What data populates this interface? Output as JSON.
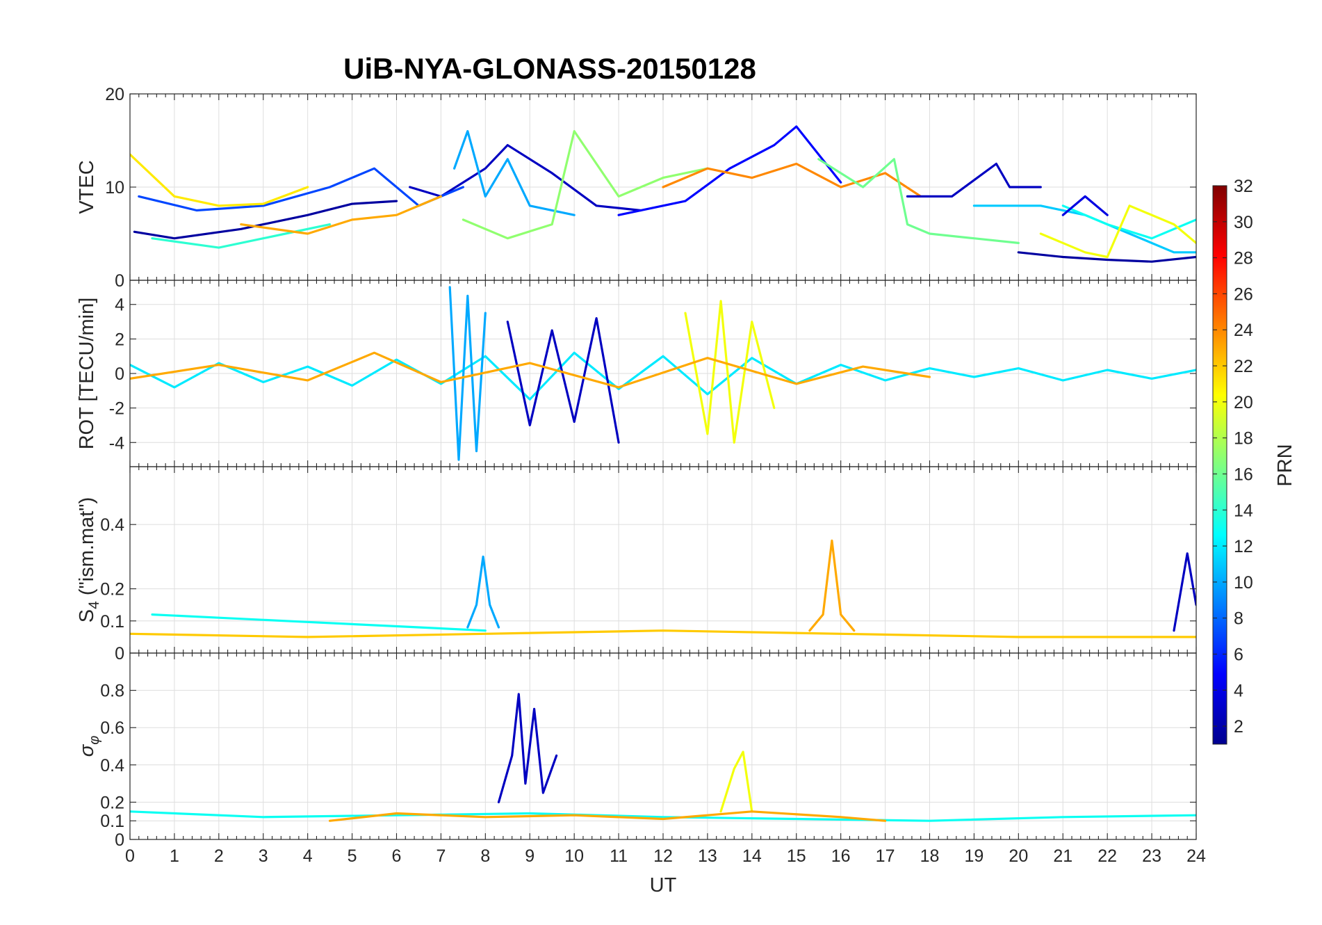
{
  "chart_data": {
    "title": "UiB-NYA-GLONASS-20150128",
    "type": "line",
    "xlabel": "UT",
    "xlim": [
      0,
      24
    ],
    "xticks": [
      "0",
      "1",
      "2",
      "3",
      "4",
      "5",
      "6",
      "7",
      "8",
      "9",
      "10",
      "11",
      "12",
      "13",
      "14",
      "15",
      "16",
      "17",
      "18",
      "19",
      "20",
      "21",
      "22",
      "23",
      "24"
    ],
    "colorbar": {
      "label": "PRN",
      "range": [
        1,
        32
      ],
      "ticks": [
        "2",
        "4",
        "6",
        "8",
        "10",
        "12",
        "14",
        "16",
        "18",
        "20",
        "22",
        "24",
        "26",
        "28",
        "30",
        "32"
      ]
    },
    "panels": [
      {
        "id": "vtec",
        "ylabel": "VTEC",
        "ylim": [
          0,
          20
        ],
        "yticks": [
          {
            "v": 0,
            "t": "0"
          },
          {
            "v": 10,
            "t": "10"
          },
          {
            "v": 20,
            "t": "20"
          }
        ],
        "series": [
          {
            "prn": 2,
            "x": [
              0.1,
              1.0,
              2.5,
              4.0,
              5.0,
              6.0
            ],
            "y": [
              5.2,
              4.5,
              5.5,
              7.0,
              8.2,
              8.5
            ]
          },
          {
            "prn": 3,
            "x": [
              6.3,
              7.0,
              8.0,
              8.5,
              9.0,
              9.5,
              10.5,
              11.5
            ],
            "y": [
              10.0,
              9.0,
              12.0,
              14.5,
              13.0,
              11.5,
              8.0,
              7.5
            ]
          },
          {
            "prn": 7,
            "x": [
              0.2,
              1.5,
              3.0,
              4.5,
              5.5,
              6.5,
              7.5
            ],
            "y": [
              9.0,
              7.5,
              8.0,
              10.0,
              12.0,
              8.0,
              10.0
            ]
          },
          {
            "prn": 10,
            "x": [
              7.3,
              7.6,
              8.0,
              8.5,
              9.0,
              10.0
            ],
            "y": [
              12.0,
              16.0,
              9.0,
              13.0,
              8.0,
              7.0
            ]
          },
          {
            "prn": 5,
            "x": [
              11.0,
              12.5,
              13.5,
              14.5,
              15.0,
              16.0
            ],
            "y": [
              7.0,
              8.5,
              12.0,
              14.5,
              16.5,
              10.5
            ]
          },
          {
            "prn": 21,
            "x": [
              0.0,
              1.0,
              2.0,
              3.0,
              4.0
            ],
            "y": [
              13.5,
              9.0,
              8.0,
              8.2,
              10.0
            ]
          },
          {
            "prn": 14,
            "x": [
              0.5,
              2.0,
              3.5,
              4.5
            ],
            "y": [
              4.5,
              3.5,
              5.0,
              6.0
            ]
          },
          {
            "prn": 23,
            "x": [
              2.5,
              4.0,
              5.0,
              6.0,
              7.0
            ],
            "y": [
              6.0,
              5.0,
              6.5,
              7.0,
              9.0
            ]
          },
          {
            "prn": 17,
            "x": [
              7.5,
              8.5,
              9.5,
              10.0,
              11.0,
              12.0,
              13.0
            ],
            "y": [
              6.5,
              4.5,
              6.0,
              16.0,
              9.0,
              11.0,
              12.0
            ]
          },
          {
            "prn": 24,
            "x": [
              12.0,
              13.0,
              14.0,
              15.0,
              16.0,
              17.0,
              17.8
            ],
            "y": [
              10.0,
              12.0,
              11.0,
              12.5,
              10.0,
              11.5,
              9.0
            ]
          },
          {
            "prn": 16,
            "x": [
              15.5,
              16.5,
              17.2,
              17.5,
              18.0,
              19.0,
              20.0
            ],
            "y": [
              13.0,
              10.0,
              13.0,
              6.0,
              5.0,
              4.5,
              4.0
            ]
          },
          {
            "prn": 3,
            "x": [
              17.5,
              18.5,
              19.5,
              19.8,
              20.5
            ],
            "y": [
              9.0,
              9.0,
              12.5,
              10.0,
              10.0
            ]
          },
          {
            "prn": 11,
            "x": [
              19.0,
              20.5,
              21.5,
              22.5,
              23.5,
              24.0
            ],
            "y": [
              8.0,
              8.0,
              7.0,
              5.0,
              3.0,
              3.0
            ]
          },
          {
            "prn": 13,
            "x": [
              21.0,
              22.0,
              23.0,
              24.0
            ],
            "y": [
              8.0,
              6.0,
              4.5,
              6.5
            ]
          },
          {
            "prn": 20,
            "x": [
              20.5,
              21.5,
              22.0,
              22.5,
              23.5,
              24.0
            ],
            "y": [
              5.0,
              3.0,
              2.5,
              8.0,
              6.0,
              4.0
            ]
          },
          {
            "prn": 2,
            "x": [
              20.0,
              21.0,
              22.0,
              23.0,
              24.0
            ],
            "y": [
              3.0,
              2.5,
              2.2,
              2.0,
              2.5
            ]
          },
          {
            "prn": 4,
            "x": [
              21.0,
              21.5,
              22.0
            ],
            "y": [
              7.0,
              9.0,
              7.0
            ]
          }
        ]
      },
      {
        "id": "rot",
        "ylabel": "ROT [TECU/min]",
        "ylim": [
          -5.4,
          5.4
        ],
        "yticks": [
          {
            "v": -4,
            "t": "-4"
          },
          {
            "v": -2,
            "t": "-2"
          },
          {
            "v": 0,
            "t": "0"
          },
          {
            "v": 2,
            "t": "2"
          },
          {
            "v": 4,
            "t": "4"
          }
        ],
        "series": [
          {
            "prn": 12,
            "x": [
              0,
              1,
              2,
              3,
              4,
              5,
              6,
              7,
              8,
              9,
              10,
              11,
              12,
              13,
              14,
              15,
              16,
              17,
              18,
              19,
              20,
              21,
              22,
              23,
              24
            ],
            "y": [
              0.5,
              -0.8,
              0.6,
              -0.5,
              0.4,
              -0.7,
              0.8,
              -0.6,
              1.0,
              -1.5,
              1.2,
              -0.9,
              1.0,
              -1.2,
              0.9,
              -0.6,
              0.5,
              -0.4,
              0.3,
              -0.2,
              0.3,
              -0.4,
              0.2,
              -0.3,
              0.2
            ]
          },
          {
            "prn": 10,
            "x": [
              7.2,
              7.4,
              7.6,
              7.8,
              8.0
            ],
            "y": [
              5.0,
              -5.0,
              4.5,
              -4.5,
              3.5
            ]
          },
          {
            "prn": 3,
            "x": [
              8.5,
              9.0,
              9.5,
              10.0,
              10.5,
              11.0
            ],
            "y": [
              3.0,
              -3.0,
              2.5,
              -2.8,
              3.2,
              -4.0
            ]
          },
          {
            "prn": 20,
            "x": [
              12.5,
              13.0,
              13.3,
              13.6,
              14.0,
              14.5
            ],
            "y": [
              3.5,
              -3.5,
              4.2,
              -4.0,
              3.0,
              -2.0
            ]
          },
          {
            "prn": 23,
            "x": [
              0,
              2,
              4,
              5.5,
              7,
              9,
              11,
              13,
              15,
              16.5,
              18
            ],
            "y": [
              -0.3,
              0.5,
              -0.4,
              1.2,
              -0.5,
              0.6,
              -0.8,
              0.9,
              -0.6,
              0.4,
              -0.2
            ]
          }
        ]
      },
      {
        "id": "s4",
        "ylabel": "S4 (\"ism.mat\")",
        "ylim": [
          0,
          0.58
        ],
        "yticks": [
          {
            "v": 0,
            "t": "0"
          },
          {
            "v": 0.1,
            "t": "0.1"
          },
          {
            "v": 0.2,
            "t": "0.2"
          },
          {
            "v": 0.4,
            "t": "0.4"
          }
        ],
        "series": [
          {
            "prn": 13,
            "x": [
              0.5,
              2.0,
              3.5,
              5.0,
              6.5,
              8.0
            ],
            "y": [
              0.12,
              0.11,
              0.1,
              0.09,
              0.08,
              0.07
            ]
          },
          {
            "prn": 10,
            "x": [
              7.6,
              7.8,
              7.95,
              8.1,
              8.3
            ],
            "y": [
              0.08,
              0.15,
              0.3,
              0.15,
              0.08
            ]
          },
          {
            "prn": 23,
            "x": [
              15.3,
              15.6,
              15.8,
              16.0,
              16.3
            ],
            "y": [
              0.07,
              0.12,
              0.35,
              0.12,
              0.07
            ]
          },
          {
            "prn": 3,
            "x": [
              23.5,
              23.8,
              24.0
            ],
            "y": [
              0.07,
              0.31,
              0.15
            ]
          },
          {
            "prn": 22,
            "x": [
              0.0,
              4.0,
              8.0,
              12.0,
              16.0,
              20.0,
              24.0
            ],
            "y": [
              0.06,
              0.05,
              0.06,
              0.07,
              0.06,
              0.05,
              0.05
            ]
          }
        ]
      },
      {
        "id": "sigma",
        "ylabel": "σφ",
        "ylim": [
          0,
          1.0
        ],
        "yticks": [
          {
            "v": 0,
            "t": "0"
          },
          {
            "v": 0.1,
            "t": "0.1"
          },
          {
            "v": 0.2,
            "t": "0.2"
          },
          {
            "v": 0.4,
            "t": "0.4"
          },
          {
            "v": 0.6,
            "t": "0.6"
          },
          {
            "v": 0.8,
            "t": "0.8"
          }
        ],
        "series": [
          {
            "prn": 3,
            "x": [
              8.3,
              8.6,
              8.75,
              8.9,
              9.1,
              9.3,
              9.6
            ],
            "y": [
              0.2,
              0.45,
              0.78,
              0.3,
              0.7,
              0.25,
              0.45
            ]
          },
          {
            "prn": 13,
            "x": [
              0,
              3,
              6,
              9,
              12,
              15,
              18,
              21,
              24
            ],
            "y": [
              0.15,
              0.12,
              0.13,
              0.14,
              0.12,
              0.11,
              0.1,
              0.12,
              0.13
            ]
          },
          {
            "prn": 20,
            "x": [
              13.3,
              13.6,
              13.8,
              14.0
            ],
            "y": [
              0.15,
              0.38,
              0.47,
              0.15
            ]
          },
          {
            "prn": 23,
            "x": [
              4.5,
              6.0,
              8.0,
              10.0,
              12.0,
              14.0,
              16.0,
              17.0
            ],
            "y": [
              0.1,
              0.14,
              0.12,
              0.13,
              0.11,
              0.15,
              0.12,
              0.1
            ]
          }
        ]
      }
    ]
  }
}
